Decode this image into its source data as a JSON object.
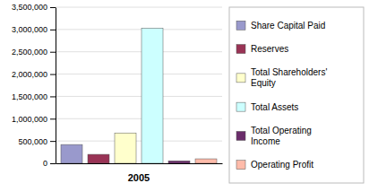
{
  "chart_data": {
    "type": "bar",
    "title": "2005",
    "categories": [
      "Share Capital Paid",
      "Reserves",
      "Total Shareholders'\nEquity",
      "Total Assets",
      "Total Operating\nIncome",
      "Operating Profit"
    ],
    "values": [
      420000,
      200000,
      680000,
      3030000,
      55000,
      100000
    ],
    "colors": [
      "#9999cc",
      "#993355",
      "#ffffcc",
      "#ccffff",
      "#6b2d6b",
      "#ffbbaa"
    ],
    "ylim": [
      0,
      3500000
    ],
    "yticks": [
      0,
      {
        "value": 500000,
        "label": "500,000"
      },
      {
        "value": 1000000,
        "label": "1,000,000"
      },
      {
        "value": 1500000,
        "label": "1,500,000"
      },
      {
        "value": 2000000,
        "label": "2,000,000"
      },
      {
        "value": 2500000,
        "label": "2,500,000"
      },
      {
        "value": 3000000,
        "label": "3,000,000"
      },
      {
        "value": 3500000,
        "label": "3,500,000"
      }
    ],
    "grid": true,
    "legend": "right"
  }
}
